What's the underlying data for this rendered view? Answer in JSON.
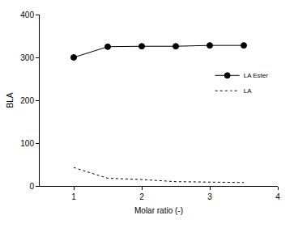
{
  "chart_data": {
    "type": "line",
    "x_label": "Molar ratio (-)",
    "y_label": "BLA",
    "x": [
      1,
      1.5,
      2,
      2.5,
      3,
      3.5
    ],
    "series": [
      {
        "name": "LA Ester",
        "color": "#000000",
        "marker": "filled",
        "line_style": "solid",
        "values": [
          300,
          325,
          326,
          326,
          328,
          328
        ]
      },
      {
        "name": "LA",
        "color": "#000000",
        "marker": "open",
        "line_style": "dotted",
        "values": [
          43,
          18,
          15,
          10,
          9,
          8
        ]
      }
    ],
    "xlim": [
      0.5,
      4
    ],
    "xticks": [
      1,
      2,
      3,
      4
    ],
    "ylim": [
      0,
      400
    ],
    "yticks": [
      0,
      100,
      200,
      300,
      400
    ],
    "grid": false,
    "legend": "right"
  }
}
